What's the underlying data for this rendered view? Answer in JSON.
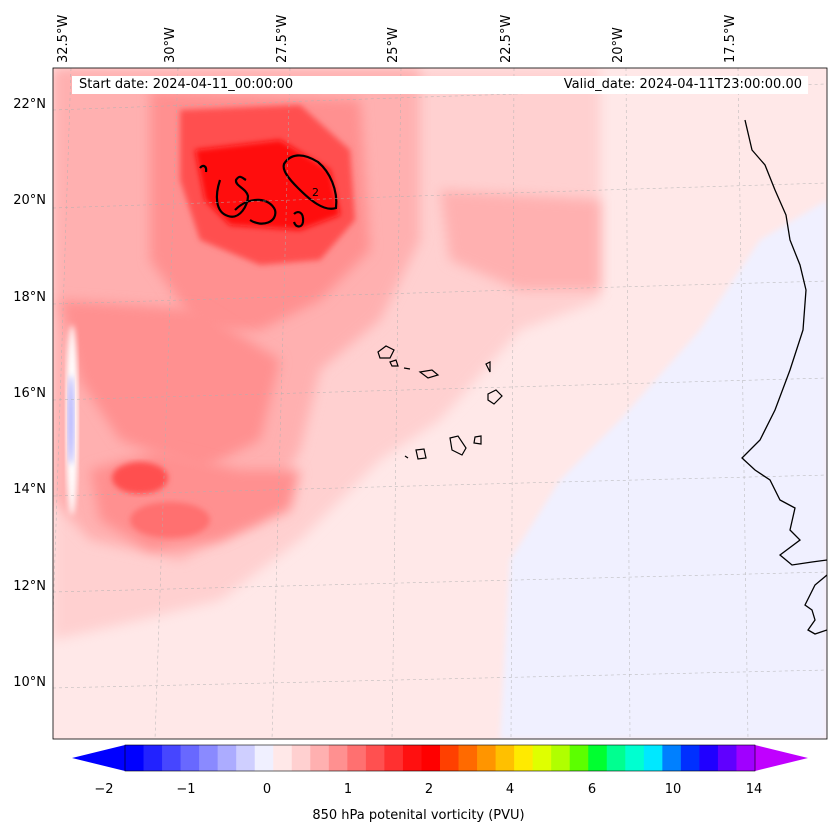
{
  "map": {
    "start_date": "Start date: 2024-04-11_00:00:00",
    "valid_date": "Valid_date: 2024-04-11T23:00:00.00",
    "lon_labels": [
      "32.5°W",
      "30°W",
      "27.5°W",
      "25°W",
      "22.5°W",
      "20°W",
      "17.5°W"
    ],
    "lat_labels": [
      "22°N",
      "20°N",
      "18°N",
      "16°N",
      "14°N",
      "12°N",
      "10°N"
    ],
    "contour_label": "2",
    "extent": {
      "lon": [
        -32.6,
        -15.6
      ],
      "lat": [
        9,
        22.8
      ]
    },
    "gridlines": true
  },
  "colorbar": {
    "label": "850 hPa potenital vorticity (PVU)",
    "ticks": [
      "−2",
      "−1",
      "0",
      "1",
      "2",
      "4",
      "6",
      "10",
      "14"
    ],
    "colors": [
      "#0000ff",
      "#2222ff",
      "#4646ff",
      "#6868ff",
      "#8a8aff",
      "#acacff",
      "#cfcfff",
      "#f0f0ff",
      "#ffe8e8",
      "#ffd0d0",
      "#ffb0b0",
      "#ff9090",
      "#ff7070",
      "#ff5050",
      "#ff3030",
      "#ff1010",
      "#ff0000",
      "#ff4000",
      "#ff6a00",
      "#ff9500",
      "#ffc000",
      "#ffea00",
      "#dfff00",
      "#b0ff00",
      "#5cff00",
      "#00ff30",
      "#00ff90",
      "#00ffd0",
      "#00e8ff",
      "#0080ff",
      "#0030ff",
      "#2000ff",
      "#6000ff",
      "#a000ff"
    ],
    "extend_min_color": "#0000ff",
    "extend_max_color": "#c000ff"
  }
}
